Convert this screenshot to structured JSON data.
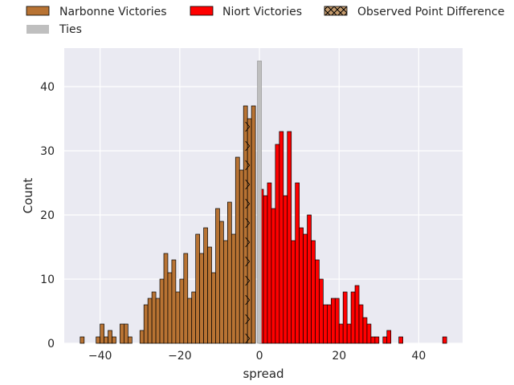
{
  "chart_data": {
    "type": "bar",
    "title": "",
    "xlabel": "spread",
    "ylabel": "Count",
    "xlim": [
      -49,
      51
    ],
    "ylim": [
      0,
      46
    ],
    "x_ticks": [
      -40,
      -20,
      0,
      20,
      40
    ],
    "x_tick_labels": [
      "−40",
      "−20",
      "0",
      "20",
      "40"
    ],
    "y_ticks": [
      0,
      10,
      20,
      30,
      40
    ],
    "y_tick_labels": [
      "0",
      "10",
      "20",
      "30",
      "40"
    ],
    "grid": true,
    "legend_position": "top",
    "bin_width": 1,
    "series": [
      {
        "name": "Narbonne Victories",
        "color": "#b87333",
        "x": [
          -45,
          -41,
          -40,
          -39,
          -38,
          -37,
          -35,
          -34,
          -33,
          -32,
          -30,
          -29,
          -28,
          -27,
          -26,
          -25,
          -24,
          -23,
          -22,
          -21,
          -20,
          -19,
          -18,
          -17,
          -16,
          -15,
          -14,
          -13,
          -12,
          -11,
          -10,
          -9,
          -8,
          -7,
          -6,
          -5,
          -4,
          -3,
          -2,
          -1
        ],
        "y": [
          1,
          1,
          3,
          1,
          2,
          1,
          3,
          3,
          1,
          0,
          2,
          6,
          7,
          8,
          7,
          10,
          14,
          11,
          13,
          8,
          10,
          14,
          7,
          8,
          17,
          14,
          18,
          15,
          11,
          21,
          19,
          16,
          22,
          17,
          29,
          27,
          37,
          35,
          37,
          0
        ]
      },
      {
        "name": "Niort Victories",
        "color": "#ff0000",
        "x": [
          0,
          1,
          2,
          3,
          4,
          5,
          6,
          7,
          8,
          9,
          10,
          11,
          12,
          13,
          14,
          15,
          16,
          17,
          18,
          19,
          20,
          21,
          22,
          23,
          24,
          25,
          26,
          27,
          28,
          29,
          30,
          31,
          32,
          33,
          34,
          35,
          36,
          37,
          38,
          39,
          40,
          41,
          42,
          43,
          44,
          45,
          46
        ],
        "y": [
          24,
          23,
          25,
          21,
          31,
          33,
          23,
          33,
          16,
          25,
          18,
          17,
          20,
          16,
          13,
          10,
          6,
          6,
          7,
          7,
          3,
          8,
          3,
          8,
          9,
          6,
          4,
          3,
          1,
          1,
          0,
          1,
          2,
          0,
          0,
          1,
          0,
          0,
          0,
          0,
          0,
          0,
          0,
          0,
          0,
          0,
          1
        ]
      },
      {
        "name": "Ties",
        "color": "#bfbfbf",
        "x": [
          -0.5
        ],
        "y": [
          44
        ]
      }
    ],
    "observed_point_difference": {
      "name": "Observed Point Difference",
      "x": -3.5,
      "color": "#c49a6c"
    }
  }
}
